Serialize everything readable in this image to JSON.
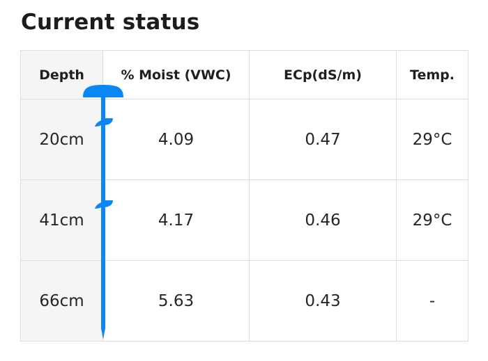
{
  "title": "Current status",
  "table": {
    "headers": [
      "Depth",
      "% Moist (VWC)",
      "ECp(dS/m)",
      "Temp."
    ],
    "rows": [
      {
        "depth": "20cm",
        "moisture": "4.09",
        "ecp": "0.47",
        "temp": "29°C"
      },
      {
        "depth": "41cm",
        "moisture": "4.17",
        "ecp": "0.46",
        "temp": "29°C"
      },
      {
        "depth": "66cm",
        "moisture": "5.63",
        "ecp": "0.43",
        "temp": "-"
      }
    ]
  },
  "colors": {
    "probe": "#0a86f5",
    "depth_column_bg": "#f5f5f5",
    "grid": "#dedede"
  },
  "icons": {
    "probe": "soil-probe-icon"
  }
}
